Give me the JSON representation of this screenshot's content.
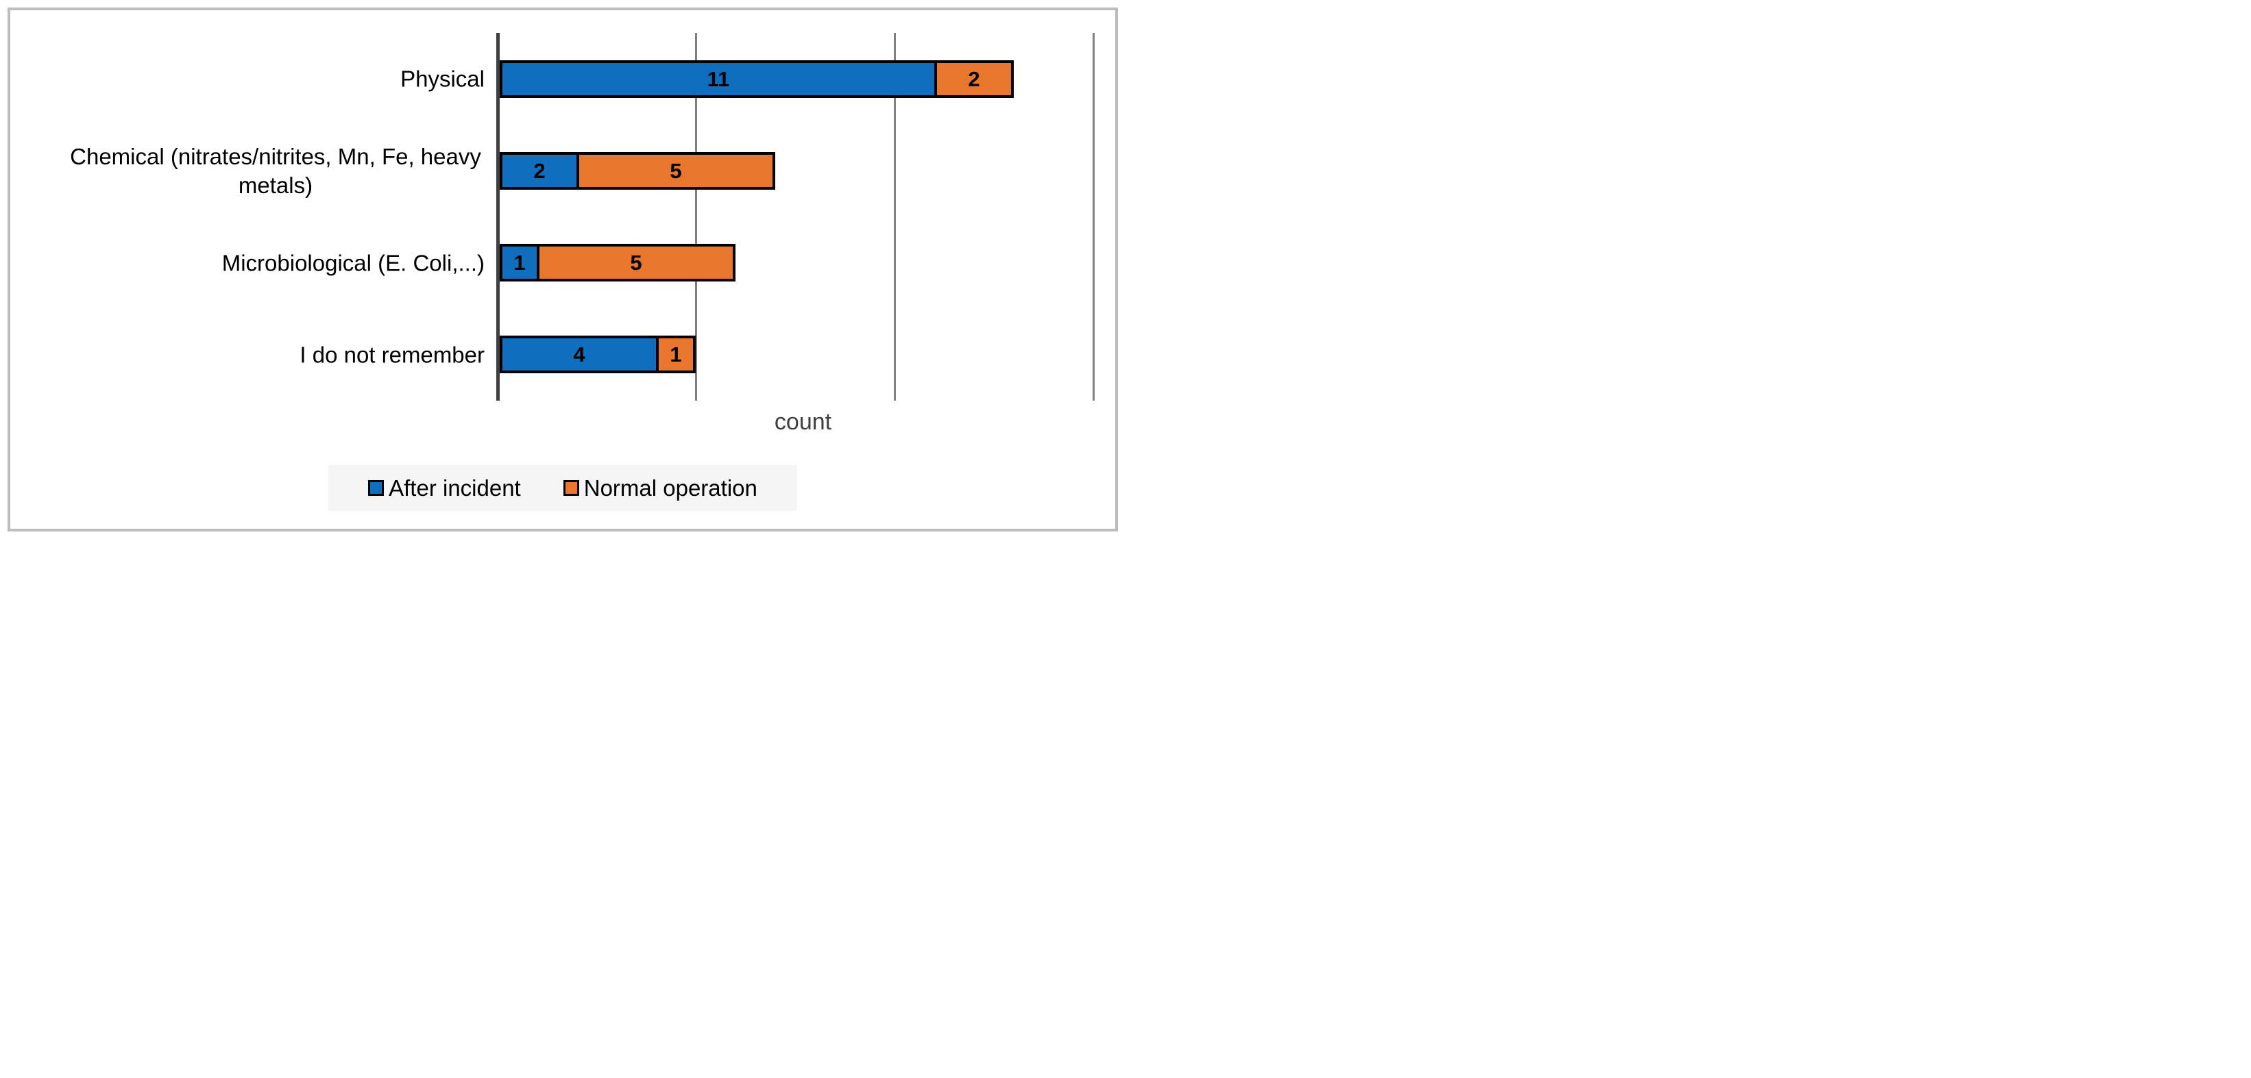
{
  "chart_data": {
    "type": "bar",
    "orientation": "horizontal",
    "stacked": true,
    "title": "",
    "xlabel": "count",
    "ylabel": "",
    "categories": [
      "Physical",
      "Chemical (nitrates/nitrites, Mn, Fe, heavy metals)",
      "Microbiological (E. Coli,...)",
      "I do not remember"
    ],
    "series": [
      {
        "name": "After incident",
        "color": "#0f6fbe",
        "values": [
          11,
          2,
          1,
          4
        ]
      },
      {
        "name": "Normal operation",
        "color": "#e8762d",
        "values": [
          2,
          5,
          5,
          1
        ]
      }
    ],
    "xlim": [
      0,
      15.4
    ],
    "gridlines_x": [
      5,
      10,
      15
    ],
    "grid": true,
    "bar_value_labels": true,
    "legend_position": "bottom"
  },
  "style": {
    "axis_line_color": "#3f3f3f",
    "gridline_color": "#808080",
    "bar_border_color": "#000000",
    "xlabel_color": "#404040",
    "legend_background": "#f5f5f5",
    "figure_border_color": "#bcbcbc",
    "background": "#ffffff"
  }
}
